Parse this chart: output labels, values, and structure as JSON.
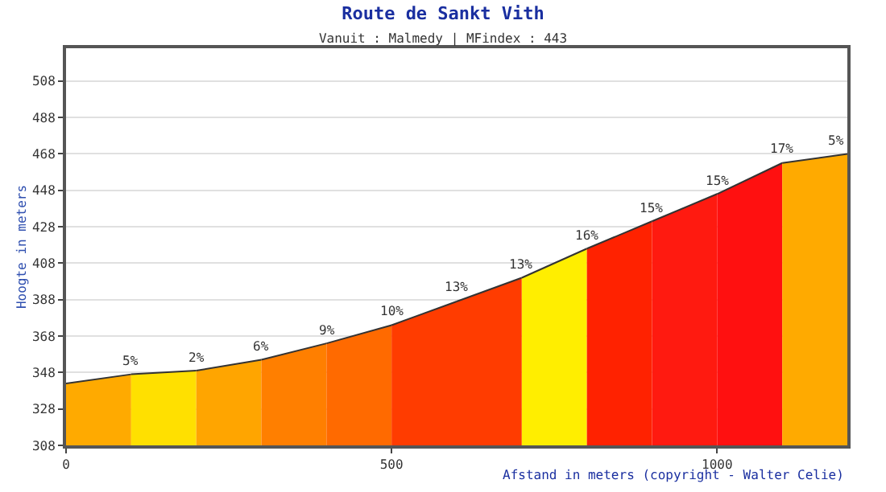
{
  "chart_data": {
    "type": "area",
    "title": "Route de Sankt Vith",
    "subtitle": "Vanuit : Malmedy | MFindex : 443",
    "xlabel": "Afstand in meters (copyright - Walter Celie)",
    "ylabel": "Hoogte in meters",
    "series": [
      {
        "x": [
          0,
          100
        ],
        "values": [
          342,
          347
        ],
        "color": "#ffaa00"
      },
      {
        "x": [
          100,
          200
        ],
        "values": [
          347,
          349
        ],
        "color": "#ffe000"
      },
      {
        "x": [
          200,
          300
        ],
        "values": [
          349,
          355
        ],
        "color": "#ffa500"
      },
      {
        "x": [
          300,
          400
        ],
        "values": [
          355,
          364
        ],
        "color": "#ff7f00"
      },
      {
        "x": [
          400,
          500
        ],
        "values": [
          364,
          374
        ],
        "color": "#ff6a00"
      },
      {
        "x": [
          500,
          600
        ],
        "values": [
          374,
          387
        ],
        "color": "#ff3c00"
      },
      {
        "x": [
          600,
          700
        ],
        "values": [
          387,
          400
        ],
        "color": "#ff3c00"
      },
      {
        "x": [
          700,
          800
        ],
        "values": [
          400,
          416
        ],
        "color": "#ffee00"
      },
      {
        "x": [
          800,
          900
        ],
        "values": [
          416,
          431
        ],
        "color": "#ff2200"
      },
      {
        "x": [
          900,
          1000
        ],
        "values": [
          431,
          446
        ],
        "color": "#ff1a10"
      },
      {
        "x": [
          1000,
          1100
        ],
        "values": [
          446,
          463
        ],
        "color": "#ff1010"
      },
      {
        "x": [
          1100,
          1200
        ],
        "values": [
          463,
          468
        ],
        "color": "#ffaa00"
      }
    ],
    "annotations": [
      {
        "text": "5%",
        "x": 100,
        "y": 347
      },
      {
        "text": "2%",
        "x": 200,
        "y": 349
      },
      {
        "text": "6%",
        "x": 300,
        "y": 355
      },
      {
        "text": "9%",
        "x": 400,
        "y": 364
      },
      {
        "text": "10%",
        "x": 500,
        "y": 374
      },
      {
        "text": "13%",
        "x": 600,
        "y": 387
      },
      {
        "text": "13%",
        "x": 700,
        "y": 400
      },
      {
        "text": "16%",
        "x": 800,
        "y": 416
      },
      {
        "text": "15%",
        "x": 900,
        "y": 431
      },
      {
        "text": "15%",
        "x": 1000,
        "y": 446
      },
      {
        "text": "17%",
        "x": 1100,
        "y": 463
      },
      {
        "text": "5%",
        "x": 1200,
        "y": 468
      }
    ],
    "xlim": [
      0,
      1200
    ],
    "xticks": [
      0,
      500,
      1000
    ],
    "ylim": [
      308,
      526
    ],
    "yticks": [
      308,
      328,
      348,
      368,
      388,
      408,
      428,
      448,
      468,
      488,
      508
    ],
    "grid": "y"
  }
}
